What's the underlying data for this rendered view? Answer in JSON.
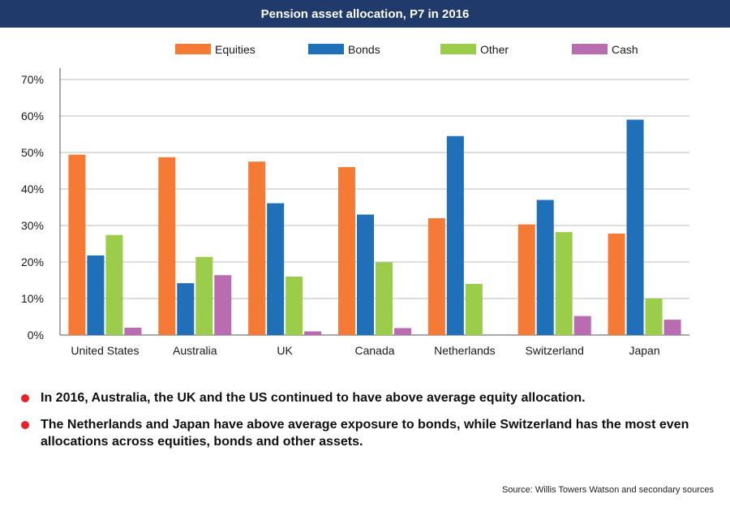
{
  "title": "Pension asset allocation, P7 in 2016",
  "colors": {
    "title_bg": "#1f3a6b",
    "bullet": "#e8202a",
    "grid": "#bdbdbd"
  },
  "chart_data": {
    "type": "bar",
    "categories": [
      "United States",
      "Australia",
      "UK",
      "Canada",
      "Netherlands",
      "Switzerland",
      "Japan"
    ],
    "series": [
      {
        "name": "Equities",
        "color": "#f47a35",
        "values": [
          49.4,
          48.7,
          47.5,
          46.0,
          32.0,
          30.3,
          27.8
        ]
      },
      {
        "name": "Bonds",
        "color": "#1f6fb9",
        "values": [
          21.8,
          14.2,
          36.1,
          33.0,
          54.5,
          37.0,
          59.0
        ]
      },
      {
        "name": "Other",
        "color": "#9bcc4a",
        "values": [
          27.4,
          21.4,
          16.0,
          19.9,
          14.0,
          28.2,
          10.0
        ]
      },
      {
        "name": "Cash",
        "color": "#b96cb0",
        "values": [
          2.0,
          16.4,
          1.0,
          1.9,
          0.0,
          5.2,
          4.2
        ]
      }
    ],
    "yticks": [
      "0%",
      "10%",
      "20%",
      "30%",
      "40%",
      "50%",
      "60%",
      "70%"
    ],
    "ylim": [
      0,
      70
    ],
    "grid": true,
    "legend_position": "top"
  },
  "bullets": [
    "In 2016, Australia, the UK and the US continued to have above average equity allocation.",
    "The Netherlands and Japan have above average exposure to bonds, while Switzerland has the most even allocations across equities, bonds and other assets."
  ],
  "source": "Source: Willis Towers Watson and secondary sources"
}
